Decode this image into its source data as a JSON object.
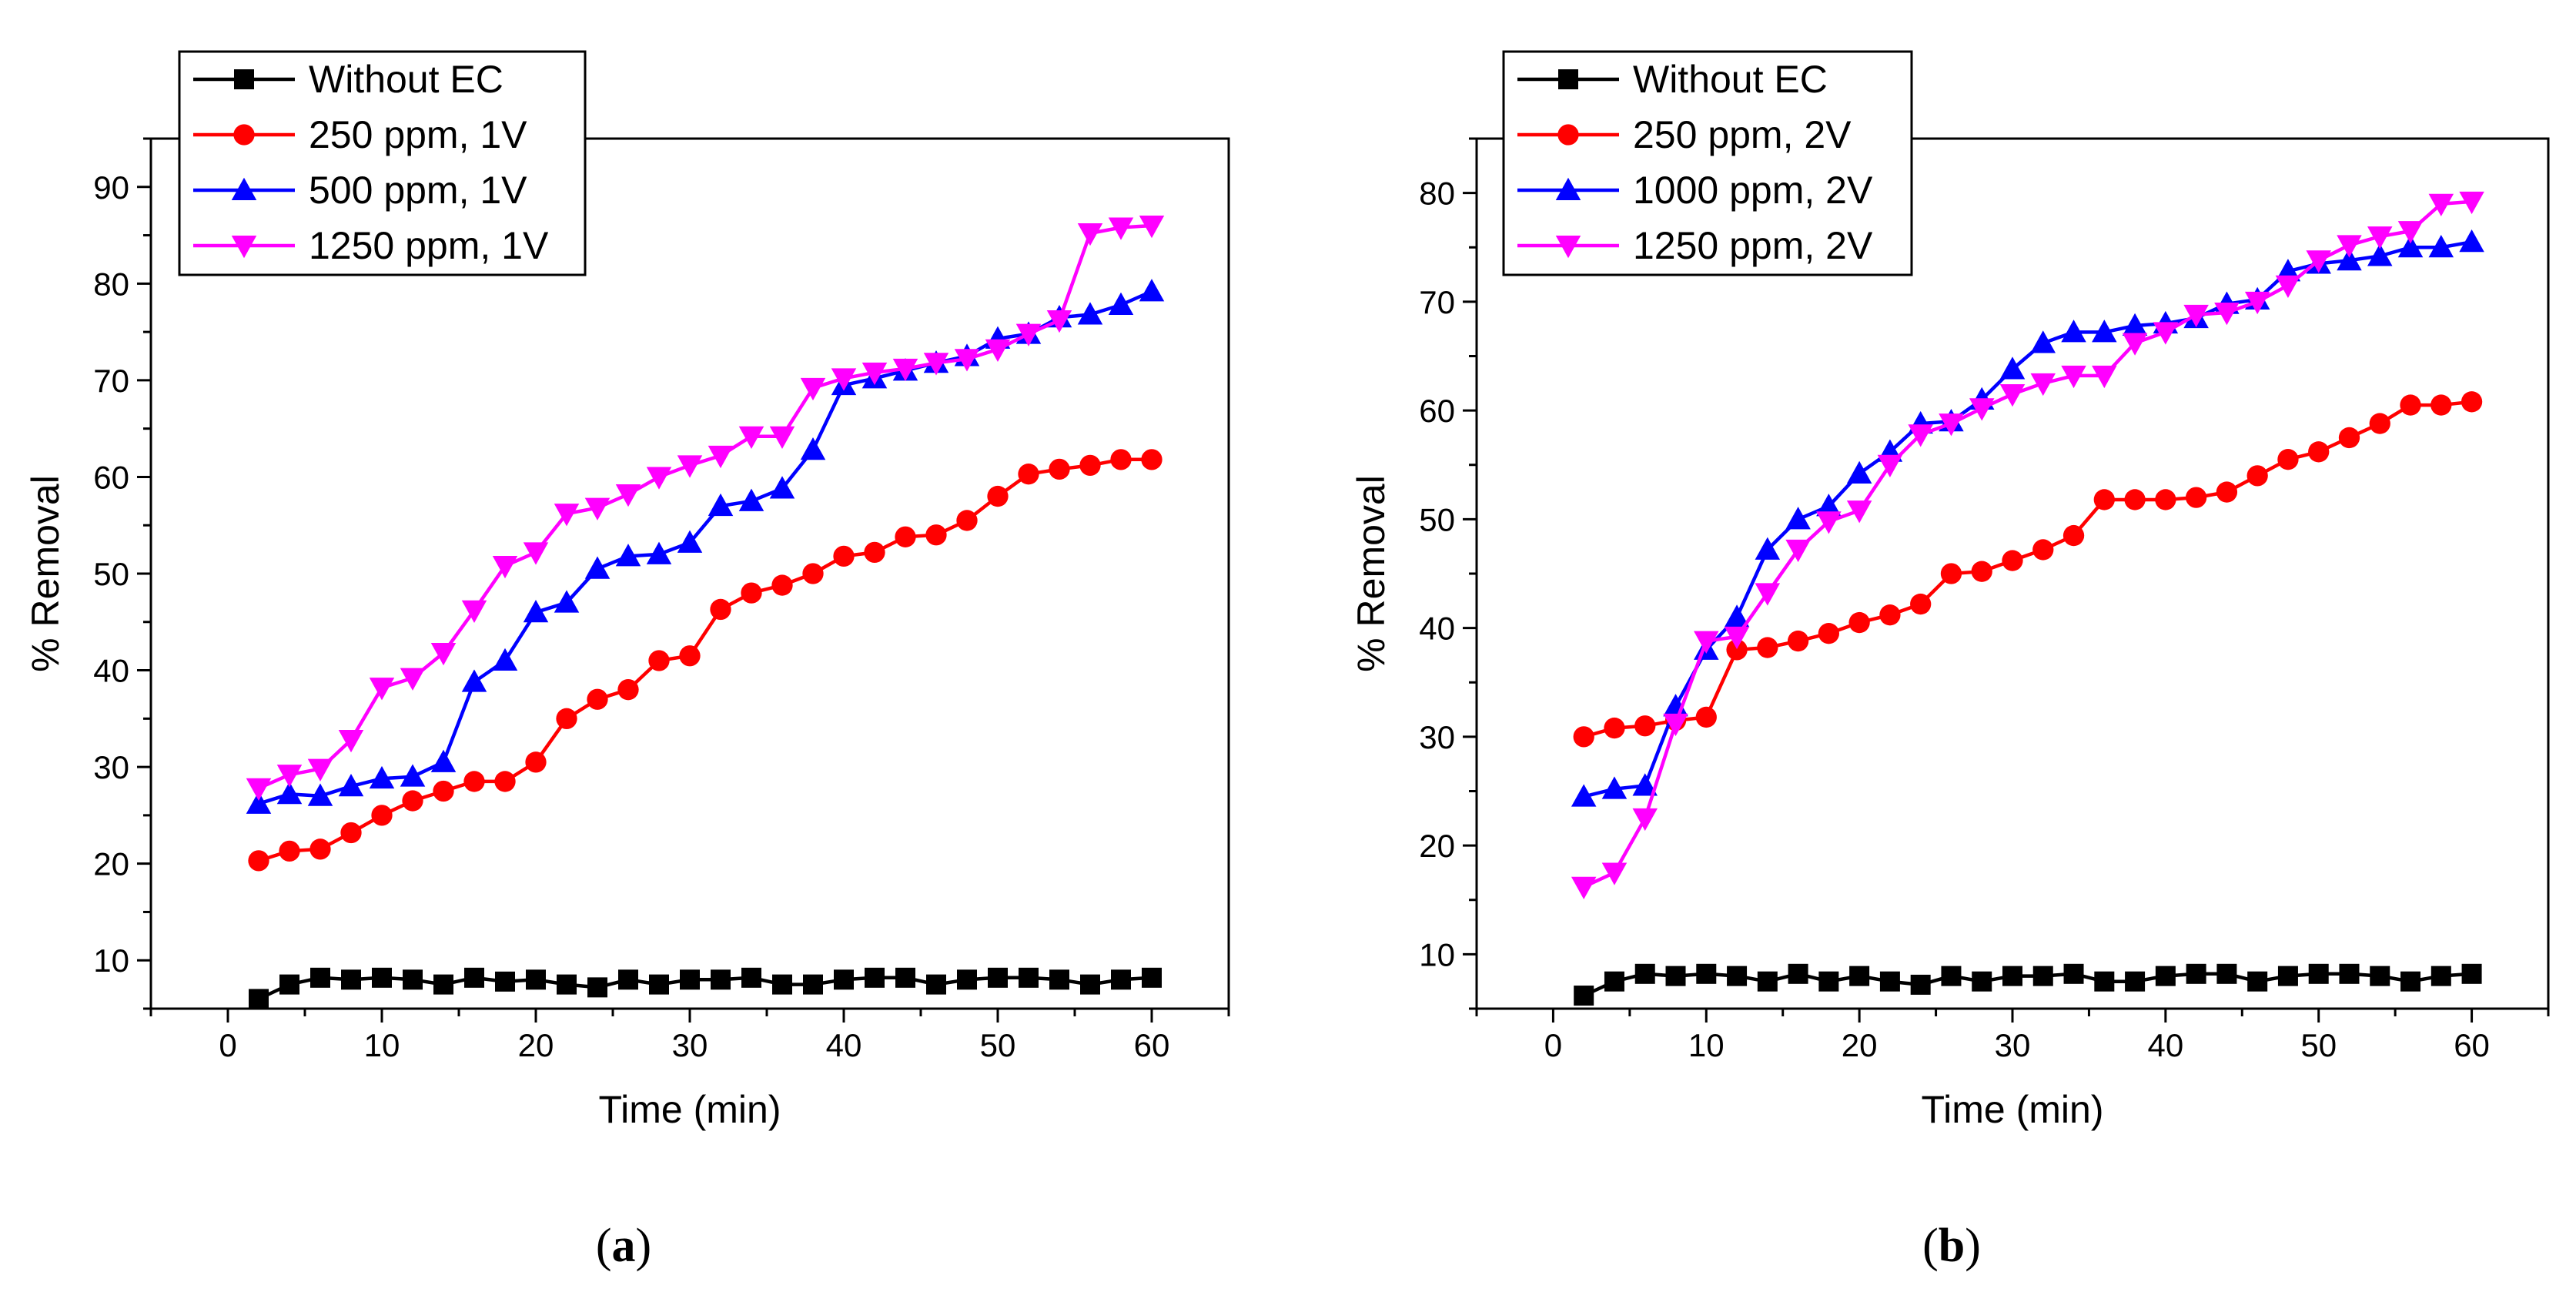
{
  "chart_data": [
    {
      "type": "line",
      "panel_label": "(a)",
      "panel_letter": "a",
      "xlabel": "Time (min)",
      "ylabel": "% Removal",
      "xlim": [
        -5,
        65
      ],
      "ylim": [
        5,
        95
      ],
      "xticks": [
        0,
        10,
        20,
        30,
        40,
        50,
        60
      ],
      "yticks": [
        10,
        20,
        30,
        40,
        50,
        60,
        70,
        80,
        90
      ],
      "legend_position": "top-left",
      "x": [
        2,
        4,
        6,
        8,
        10,
        12,
        14,
        16,
        18,
        20,
        22,
        24,
        26,
        28,
        30,
        32,
        34,
        36,
        38,
        40,
        42,
        44,
        46,
        48,
        50,
        52,
        54,
        56,
        58,
        60
      ],
      "series": [
        {
          "name": "Without EC",
          "color": "#000000",
          "marker": "square",
          "values": [
            6,
            7.5,
            8.2,
            8,
            8.2,
            8,
            7.5,
            8.2,
            7.8,
            8,
            7.5,
            7.2,
            8,
            7.5,
            8,
            8,
            8.2,
            7.5,
            7.5,
            8,
            8.2,
            8.2,
            7.5,
            8,
            8.2,
            8.2,
            8,
            7.5,
            8,
            8.2
          ]
        },
        {
          "name": "250 ppm, 1V",
          "color": "#ff0000",
          "marker": "circle",
          "values": [
            20.3,
            21.3,
            21.5,
            23.2,
            25,
            26.5,
            27.5,
            28.5,
            28.5,
            30.5,
            35,
            37,
            38,
            41,
            41.5,
            46.3,
            48,
            48.8,
            50,
            51.8,
            52.2,
            53.8,
            54,
            55.5,
            58,
            60.3,
            60.8,
            61.2,
            61.8,
            61.8
          ]
        },
        {
          "name": "500 ppm, 1V",
          "color": "#0000ff",
          "marker": "triangle-up",
          "values": [
            26.2,
            27.2,
            27,
            28,
            28.8,
            29,
            30.5,
            38.8,
            41,
            46,
            47,
            50.5,
            51.8,
            52,
            53.2,
            57,
            57.5,
            58.8,
            62.8,
            69.5,
            70.2,
            71,
            71.8,
            72.5,
            74.3,
            74.8,
            76.5,
            76.8,
            77.8,
            79.2
          ]
        },
        {
          "name": "1250 ppm, 1V",
          "color": "#ff00ff",
          "marker": "triangle-down",
          "values": [
            27.8,
            29.2,
            29.8,
            32.8,
            38.2,
            39.2,
            41.8,
            46.2,
            50.8,
            52.2,
            56.2,
            56.8,
            58.2,
            60,
            61.2,
            62.2,
            64.2,
            64.2,
            69.2,
            70.2,
            70.8,
            71.2,
            71.8,
            72.2,
            73.2,
            74.8,
            76.2,
            85.2,
            85.8,
            86
          ]
        }
      ]
    },
    {
      "type": "line",
      "panel_label": "(b)",
      "panel_letter": "b",
      "xlabel": "Time (min)",
      "ylabel": "% Removal",
      "xlim": [
        -5,
        65
      ],
      "ylim": [
        5,
        85
      ],
      "xticks": [
        0,
        10,
        20,
        30,
        40,
        50,
        60
      ],
      "yticks": [
        10,
        20,
        30,
        40,
        50,
        60,
        70,
        80
      ],
      "legend_position": "top-left",
      "x": [
        2,
        4,
        6,
        8,
        10,
        12,
        14,
        16,
        18,
        20,
        22,
        24,
        26,
        28,
        30,
        32,
        34,
        36,
        38,
        40,
        42,
        44,
        46,
        48,
        50,
        52,
        54,
        56,
        58,
        60
      ],
      "series": [
        {
          "name": "Without EC",
          "color": "#000000",
          "marker": "square",
          "values": [
            6.2,
            7.5,
            8.2,
            8,
            8.2,
            8,
            7.5,
            8.2,
            7.5,
            8,
            7.5,
            7.2,
            8,
            7.5,
            8,
            8,
            8.2,
            7.5,
            7.5,
            8,
            8.2,
            8.2,
            7.5,
            8,
            8.2,
            8.2,
            8,
            7.5,
            8,
            8.2
          ]
        },
        {
          "name": "250 ppm, 2V",
          "color": "#ff0000",
          "marker": "circle",
          "values": [
            30,
            30.8,
            31,
            31.5,
            31.8,
            38,
            38.2,
            38.8,
            39.5,
            40.5,
            41.2,
            42.2,
            45,
            45.2,
            46.2,
            47.2,
            48.5,
            51.8,
            51.8,
            51.8,
            52,
            52.5,
            54,
            55.5,
            56.2,
            57.5,
            58.8,
            60.5,
            60.5,
            60.8
          ]
        },
        {
          "name": "1000 ppm, 2V",
          "color": "#0000ff",
          "marker": "triangle-up",
          "values": [
            24.5,
            25.2,
            25.5,
            32.8,
            38,
            41,
            47.2,
            50,
            51.2,
            54.2,
            56.2,
            58.8,
            59,
            61,
            63.8,
            66.2,
            67.2,
            67.2,
            67.8,
            68,
            68.5,
            69.8,
            70.2,
            72.8,
            73.5,
            73.8,
            74.2,
            75,
            75,
            75.5
          ]
        },
        {
          "name": "1250 ppm, 2V",
          "color": "#ff00ff",
          "marker": "triangle-down",
          "values": [
            16.2,
            17.5,
            22.5,
            31.2,
            38.8,
            39.2,
            43.2,
            47.2,
            49.8,
            50.8,
            55,
            57.8,
            58.8,
            60.2,
            61.5,
            62.5,
            63.2,
            63.2,
            66.2,
            67.2,
            68.8,
            69,
            70,
            71.5,
            73.8,
            75.2,
            76,
            76.5,
            79,
            79.2
          ]
        }
      ]
    }
  ]
}
